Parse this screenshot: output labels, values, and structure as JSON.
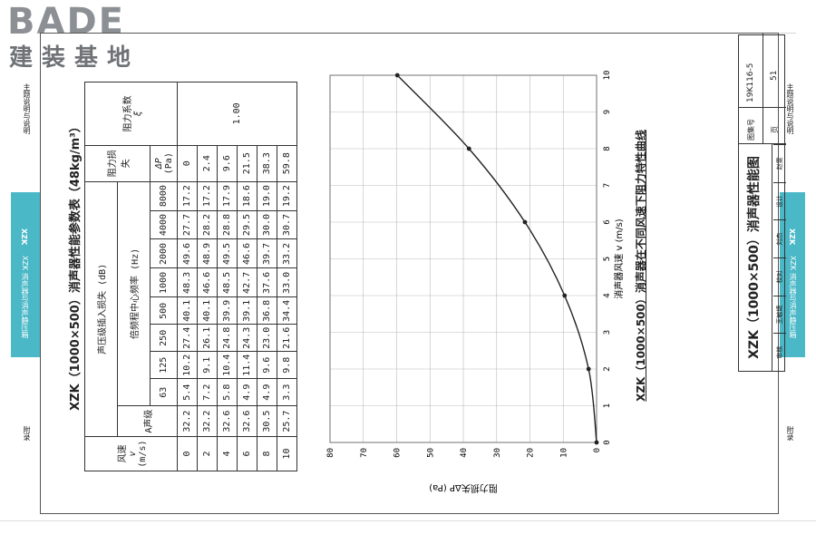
{
  "brand": {
    "en": "BADE",
    "cn": "建装基地"
  },
  "side": {
    "left_top": "主题说明与说明",
    "left_tab": "XZK 消声器与消声静压箱",
    "left_tab_code": "XZK",
    "left_bottom": "附录",
    "right_top": "主题说明与说明",
    "right_tab": "XZK 消声器与消声静压箱",
    "right_tab_code": "XZK",
    "right_bottom": "附录"
  },
  "table": {
    "title": "XZK（1000×500）消声器性能参数表（48kg/m³）",
    "h_speed": "风速",
    "h_speed_v": "v",
    "h_speed_unit": "(m/s)",
    "h_loss": "声压级插入损失 (dB)",
    "h_a": "A声级",
    "h_oct": "倍频程中心频率 (Hz)",
    "freqs": [
      "63",
      "125",
      "250",
      "500",
      "1000",
      "2000",
      "4000",
      "8000"
    ],
    "h_drop": "阻力损失",
    "h_drop_sym": "ΔP",
    "h_drop_unit": "(Pa)",
    "h_coef": "阻力系数",
    "h_coef_sym": "ξ",
    "coef_value": "1.00",
    "rows": [
      {
        "v": "0",
        "a": "32.2",
        "f": [
          "5.4",
          "10.2",
          "27.4",
          "40.1",
          "48.3",
          "49.6",
          "27.7",
          "17.2"
        ],
        "dp": "0"
      },
      {
        "v": "2",
        "a": "32.2",
        "f": [
          "7.2",
          "9.1",
          "26.1",
          "40.1",
          "46.6",
          "48.9",
          "28.2",
          "17.2"
        ],
        "dp": "2.4"
      },
      {
        "v": "4",
        "a": "32.6",
        "f": [
          "5.8",
          "10.4",
          "24.8",
          "39.9",
          "48.5",
          "49.5",
          "28.8",
          "17.9"
        ],
        "dp": "9.6"
      },
      {
        "v": "6",
        "a": "32.6",
        "f": [
          "4.9",
          "11.4",
          "24.3",
          "39.1",
          "42.7",
          "46.6",
          "29.5",
          "18.6"
        ],
        "dp": "21.5"
      },
      {
        "v": "8",
        "a": "30.5",
        "f": [
          "4.9",
          "9.6",
          "23.0",
          "36.8",
          "37.6",
          "39.7",
          "30.0",
          "19.0"
        ],
        "dp": "38.3"
      },
      {
        "v": "10",
        "a": "25.7",
        "f": [
          "3.3",
          "9.8",
          "21.6",
          "34.4",
          "33.0",
          "33.2",
          "30.7",
          "19.2"
        ],
        "dp": "59.8"
      }
    ]
  },
  "chart_data": {
    "type": "line",
    "title": "XZK（1000×500）消声器在不同风速下阻力特性曲线",
    "xlabel": "消声器风速 v (m/s)",
    "ylabel": "阻力损失ΔP (Pa)",
    "xlim": [
      0,
      10
    ],
    "ylim": [
      0,
      80
    ],
    "x_ticks": [
      "0",
      "1",
      "2",
      "3",
      "4",
      "5",
      "6",
      "7",
      "8",
      "9",
      "10"
    ],
    "y_ticks": [
      "0",
      "10",
      "20",
      "30",
      "40",
      "50",
      "60",
      "70",
      "80"
    ],
    "grid": true,
    "series": [
      {
        "x": [
          0,
          2,
          4,
          6,
          8,
          10
        ],
        "y": [
          0,
          2.4,
          9.6,
          21.5,
          38.3,
          59.8
        ]
      }
    ]
  },
  "title_block": {
    "main_title": "XZK（1000×500）消声器性能图",
    "atlas_label": "图集号",
    "atlas_no": "19K116-5",
    "page_label": "页",
    "page_no": "51",
    "roles": [
      "审核",
      "王敏婕",
      "校对",
      "刘杰",
      "设计",
      "赵雯"
    ]
  }
}
